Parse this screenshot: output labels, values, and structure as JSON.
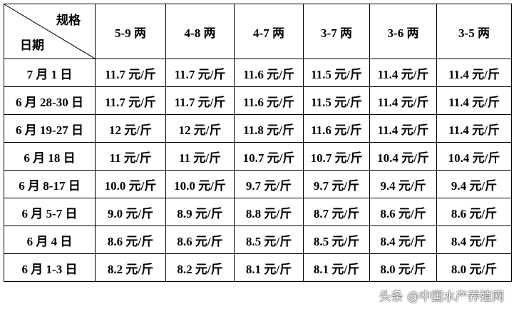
{
  "header": {
    "spec_label": "规格",
    "date_label": "日期",
    "columns": [
      "5-9 两",
      "4-8 两",
      "4-7 两",
      "3-7 两",
      "3-6 两",
      "3-5 两"
    ]
  },
  "rows": [
    {
      "date": "7 月 1 日",
      "prices": [
        "11.7 元/斤",
        "11.7 元/斤",
        "11.6 元/斤",
        "11.5 元/斤",
        "11.4 元/斤",
        "11.4 元/斤"
      ]
    },
    {
      "date": "6 月 28-30 日",
      "prices": [
        "11.7 元/斤",
        "11.7 元/斤",
        "11.6 元/斤",
        "11.5 元/斤",
        "11.4 元/斤",
        "11.4 元/斤"
      ]
    },
    {
      "date": "6 月 19-27 日",
      "prices": [
        "12 元/斤",
        "12 元/斤",
        "11.8 元/斤",
        "11.6 元/斤",
        "11.4 元/斤",
        "11.4 元/斤"
      ]
    },
    {
      "date": "6 月 18 日",
      "prices": [
        "11 元/斤",
        "11 元/斤",
        "10.7 元/斤",
        "10.7 元/斤",
        "10.4 元/斤",
        "10.4 元/斤"
      ]
    },
    {
      "date": "6 月 8-17 日",
      "prices": [
        "10.0 元/斤",
        "10.0 元/斤",
        "9.7 元/斤",
        "9.7 元/斤",
        "9.4 元/斤",
        "9.4 元/斤"
      ]
    },
    {
      "date": "6 月 5-7 日",
      "prices": [
        "9.0 元/斤",
        "8.9 元/斤",
        "8.8 元/斤",
        "8.7 元/斤",
        "8.6 元/斤",
        "8.6 元/斤"
      ]
    },
    {
      "date": "6 月 4 日",
      "prices": [
        "8.6 元/斤",
        "8.6 元/斤",
        "8.5 元/斤",
        "8.5 元/斤",
        "8.4 元/斤",
        "8.4 元/斤"
      ]
    },
    {
      "date": "6 月 1-3 日",
      "prices": [
        "8.2 元/斤",
        "8.2 元/斤",
        "8.1 元/斤",
        "8.1 元/斤",
        "8.0 元/斤",
        "8.0 元/斤"
      ]
    }
  ],
  "watermark": "头条 @中国水产养殖网"
}
